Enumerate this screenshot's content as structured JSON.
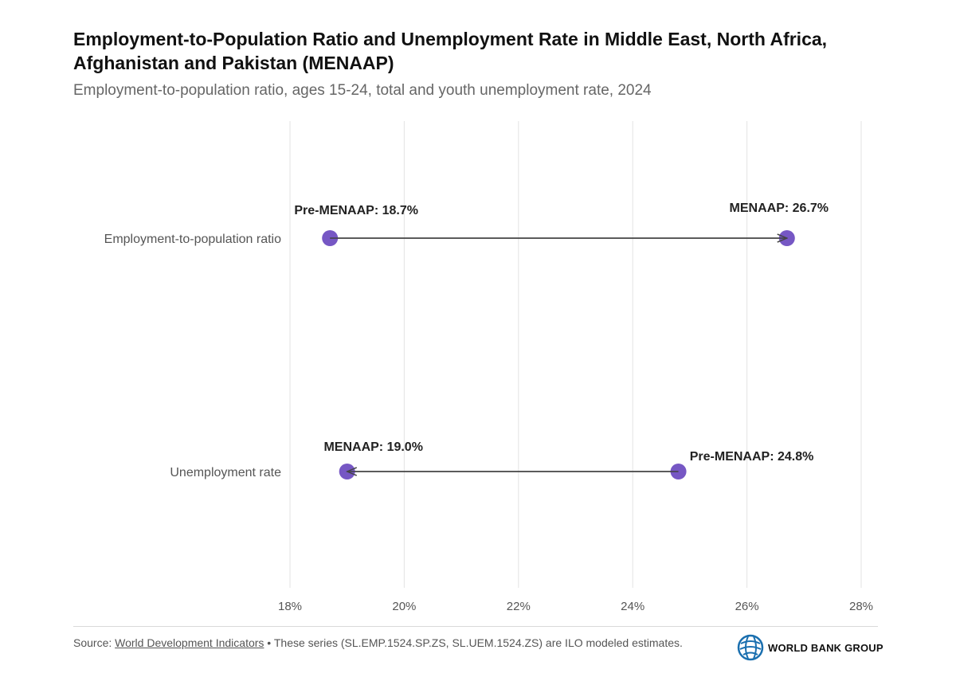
{
  "header": {
    "title": "Employment-to-Population Ratio and Unemployment Rate in Middle East, North Africa, Afghanistan and Pakistan (MENAAP)",
    "subtitle": "Employment-to-population ratio, ages 15-24, total and youth unemployment rate, 2024"
  },
  "footer": {
    "source_prefix": "Source: ",
    "source_link": "World Development Indicators",
    "source_note": " • These series (SL.EMP.1524.SP.ZS, SL.UEM.1524.ZS) are ILO modeled estimates.",
    "logo_text": "WORLD BANK GROUP"
  },
  "colors": {
    "dot": "#6a49bf",
    "arrow": "#444444",
    "grid": "#e3e3e3"
  },
  "chart_data": {
    "type": "scatter",
    "subtype": "dumbbell-arrow",
    "title": "Employment-to-Population Ratio and Unemployment Rate in Middle East, North Africa, Afghanistan and Pakistan (MENAAP)",
    "subtitle": "Employment-to-population ratio, ages 15-24, total and youth unemployment rate, 2024",
    "xlabel": "",
    "ylabel": "",
    "xlim": [
      18,
      28
    ],
    "xticks": [
      18,
      20,
      22,
      24,
      26,
      28
    ],
    "xtick_labels": [
      "18%",
      "20%",
      "22%",
      "24%",
      "26%",
      "28%"
    ],
    "grid": true,
    "categories": [
      "Employment-to-population ratio",
      "Unemployment rate"
    ],
    "rows": [
      {
        "category": "Employment-to-population ratio",
        "from": {
          "label": "Pre-MENAAP: 18.7%",
          "value": 18.7
        },
        "to": {
          "label": "MENAAP: 26.7%",
          "value": 26.7
        }
      },
      {
        "category": "Unemployment rate",
        "from": {
          "label": "Pre-MENAAP: 24.8%",
          "value": 24.8
        },
        "to": {
          "label": "MENAAP: 19.0%",
          "value": 19.0
        }
      }
    ]
  }
}
